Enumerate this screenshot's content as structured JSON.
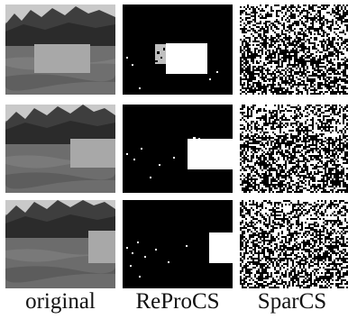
{
  "figure": {
    "column_labels": [
      "original",
      "ReProCS",
      "SparCS"
    ],
    "rows": [
      {
        "foreground": "square block over lake"
      },
      {
        "foreground": "square block over lake"
      },
      {
        "foreground": "square block over lake"
      }
    ]
  }
}
